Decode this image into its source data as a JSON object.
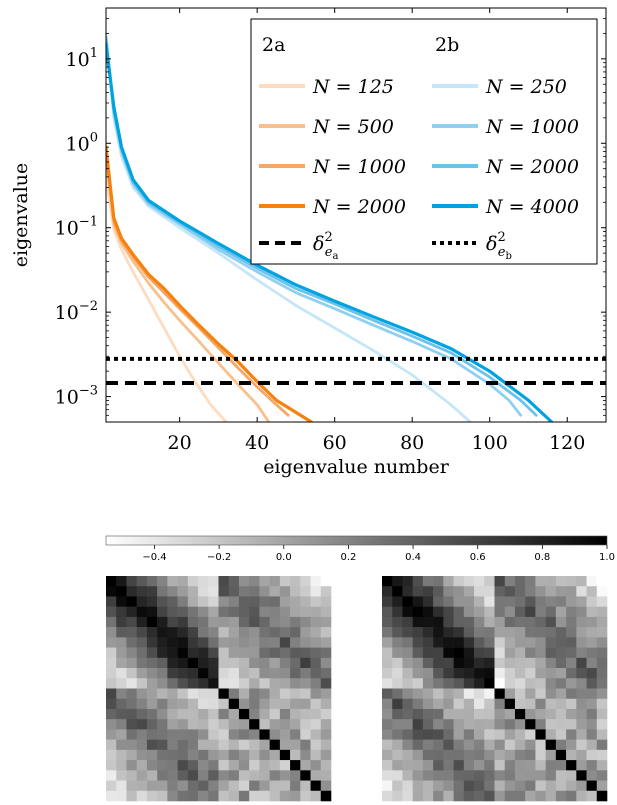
{
  "chart_data": [
    {
      "type": "line",
      "xlabel": "eigenvalue number",
      "ylabel": "eigenvalue",
      "xlim": [
        1,
        130
      ],
      "ylim": [
        0.0005,
        40
      ],
      "yscale": "log",
      "xticks": [
        20,
        40,
        60,
        80,
        100,
        120
      ],
      "yticks": [
        10,
        1,
        0.1,
        0.01,
        0.001
      ],
      "ytick_labels": [
        {
          "base": "10",
          "exp": "1"
        },
        {
          "base": "10",
          "exp": "0"
        },
        {
          "base": "10",
          "exp": "−1"
        },
        {
          "base": "10",
          "exp": "−2"
        },
        {
          "base": "10",
          "exp": "−3"
        }
      ],
      "legend": {
        "placement": "top-right",
        "group_a": "2a",
        "group_b": "2b"
      },
      "series": [
        {
          "name": "N = 125",
          "group": "2a",
          "color": "#fddcbf",
          "width": 2.8,
          "x": [
            1,
            3,
            5,
            8,
            12,
            16,
            20,
            24,
            28,
            32
          ],
          "y": [
            0.4,
            0.095,
            0.055,
            0.03,
            0.014,
            0.0065,
            0.003,
            0.0015,
            0.0008,
            0.0005
          ]
        },
        {
          "name": "N = 500",
          "group": "2a",
          "color": "#f9c08e",
          "width": 2.8,
          "x": [
            1,
            3,
            5,
            8,
            12,
            16,
            20,
            25,
            30,
            35,
            40,
            43
          ],
          "y": [
            0.7,
            0.11,
            0.065,
            0.04,
            0.022,
            0.013,
            0.008,
            0.0045,
            0.0025,
            0.0014,
            0.0008,
            0.0005
          ]
        },
        {
          "name": "N = 1000",
          "group": "2a",
          "color": "#f6a765",
          "width": 2.8,
          "x": [
            1,
            3,
            5,
            8,
            12,
            16,
            20,
            25,
            30,
            35,
            40,
            45,
            48
          ],
          "y": [
            0.8,
            0.12,
            0.07,
            0.045,
            0.026,
            0.017,
            0.011,
            0.0065,
            0.0038,
            0.0022,
            0.0013,
            0.0008,
            0.0006
          ]
        },
        {
          "name": "N = 2000",
          "group": "2a",
          "color": "#f5820f",
          "width": 3.2,
          "x": [
            1,
            3,
            5,
            8,
            12,
            16,
            20,
            25,
            30,
            35,
            40,
            45,
            50,
            54
          ],
          "y": [
            0.9,
            0.13,
            0.075,
            0.048,
            0.028,
            0.019,
            0.012,
            0.007,
            0.0042,
            0.0026,
            0.0015,
            0.0009,
            0.00065,
            0.0005
          ]
        },
        {
          "name": "N = 250",
          "group": "2b",
          "color": "#c4e6f7",
          "width": 2.8,
          "x": [
            1,
            3,
            5,
            8,
            12,
            20,
            30,
            40,
            50,
            60,
            70,
            80,
            85,
            90,
            95
          ],
          "y": [
            20,
            2.0,
            0.7,
            0.3,
            0.18,
            0.1,
            0.05,
            0.024,
            0.012,
            0.0065,
            0.0035,
            0.0018,
            0.0012,
            0.0008,
            0.0005
          ]
        },
        {
          "name": "N = 1000",
          "group": "2b",
          "color": "#8fd0f0",
          "width": 2.8,
          "x": [
            1,
            3,
            5,
            8,
            12,
            20,
            30,
            40,
            50,
            60,
            70,
            80,
            90,
            100,
            105,
            108
          ],
          "y": [
            18,
            2.3,
            0.8,
            0.33,
            0.19,
            0.11,
            0.055,
            0.03,
            0.017,
            0.011,
            0.007,
            0.0045,
            0.0028,
            0.0014,
            0.0009,
            0.0006
          ]
        },
        {
          "name": "N = 2000",
          "group": "2b",
          "color": "#6bc2ec",
          "width": 2.8,
          "x": [
            1,
            3,
            5,
            8,
            12,
            20,
            30,
            40,
            50,
            60,
            70,
            80,
            90,
            100,
            108,
            112
          ],
          "y": [
            17,
            2.5,
            0.85,
            0.35,
            0.2,
            0.115,
            0.06,
            0.033,
            0.019,
            0.0125,
            0.008,
            0.0052,
            0.0033,
            0.0017,
            0.0009,
            0.0006
          ]
        },
        {
          "name": "N = 4000",
          "group": "2b",
          "color": "#00a3e0",
          "width": 3.2,
          "x": [
            1,
            3,
            5,
            8,
            12,
            20,
            30,
            40,
            50,
            60,
            70,
            80,
            90,
            100,
            110,
            116
          ],
          "y": [
            15,
            2.7,
            0.9,
            0.37,
            0.21,
            0.12,
            0.065,
            0.036,
            0.021,
            0.0135,
            0.0088,
            0.0058,
            0.0037,
            0.002,
            0.0009,
            0.0005
          ]
        }
      ],
      "hlines": [
        {
          "name": "δ²_ea",
          "label_base": "δ",
          "label_sup": "2",
          "label_sub": "e",
          "label_subsub": "a",
          "y": 0.00145,
          "style": "dashed",
          "group": "2a"
        },
        {
          "name": "δ²_eb",
          "label_base": "δ",
          "label_sup": "2",
          "label_sub": "e",
          "label_subsub": "b",
          "y": 0.0028,
          "style": "dotted",
          "group": "2b"
        }
      ]
    },
    {
      "type": "heatmap",
      "colorbar": {
        "min": -0.55,
        "max": 1.0,
        "ticks": [
          -0.4,
          -0.2,
          0.0,
          0.2,
          0.4,
          0.6,
          0.8,
          1.0
        ],
        "tick_labels": [
          "−0.4",
          "−0.2",
          "0.0",
          "0.2",
          "0.4",
          "0.6",
          "0.8",
          "1.0"
        ],
        "colormap": "gray_r"
      },
      "panels": 2,
      "description_grid": 22
    }
  ]
}
